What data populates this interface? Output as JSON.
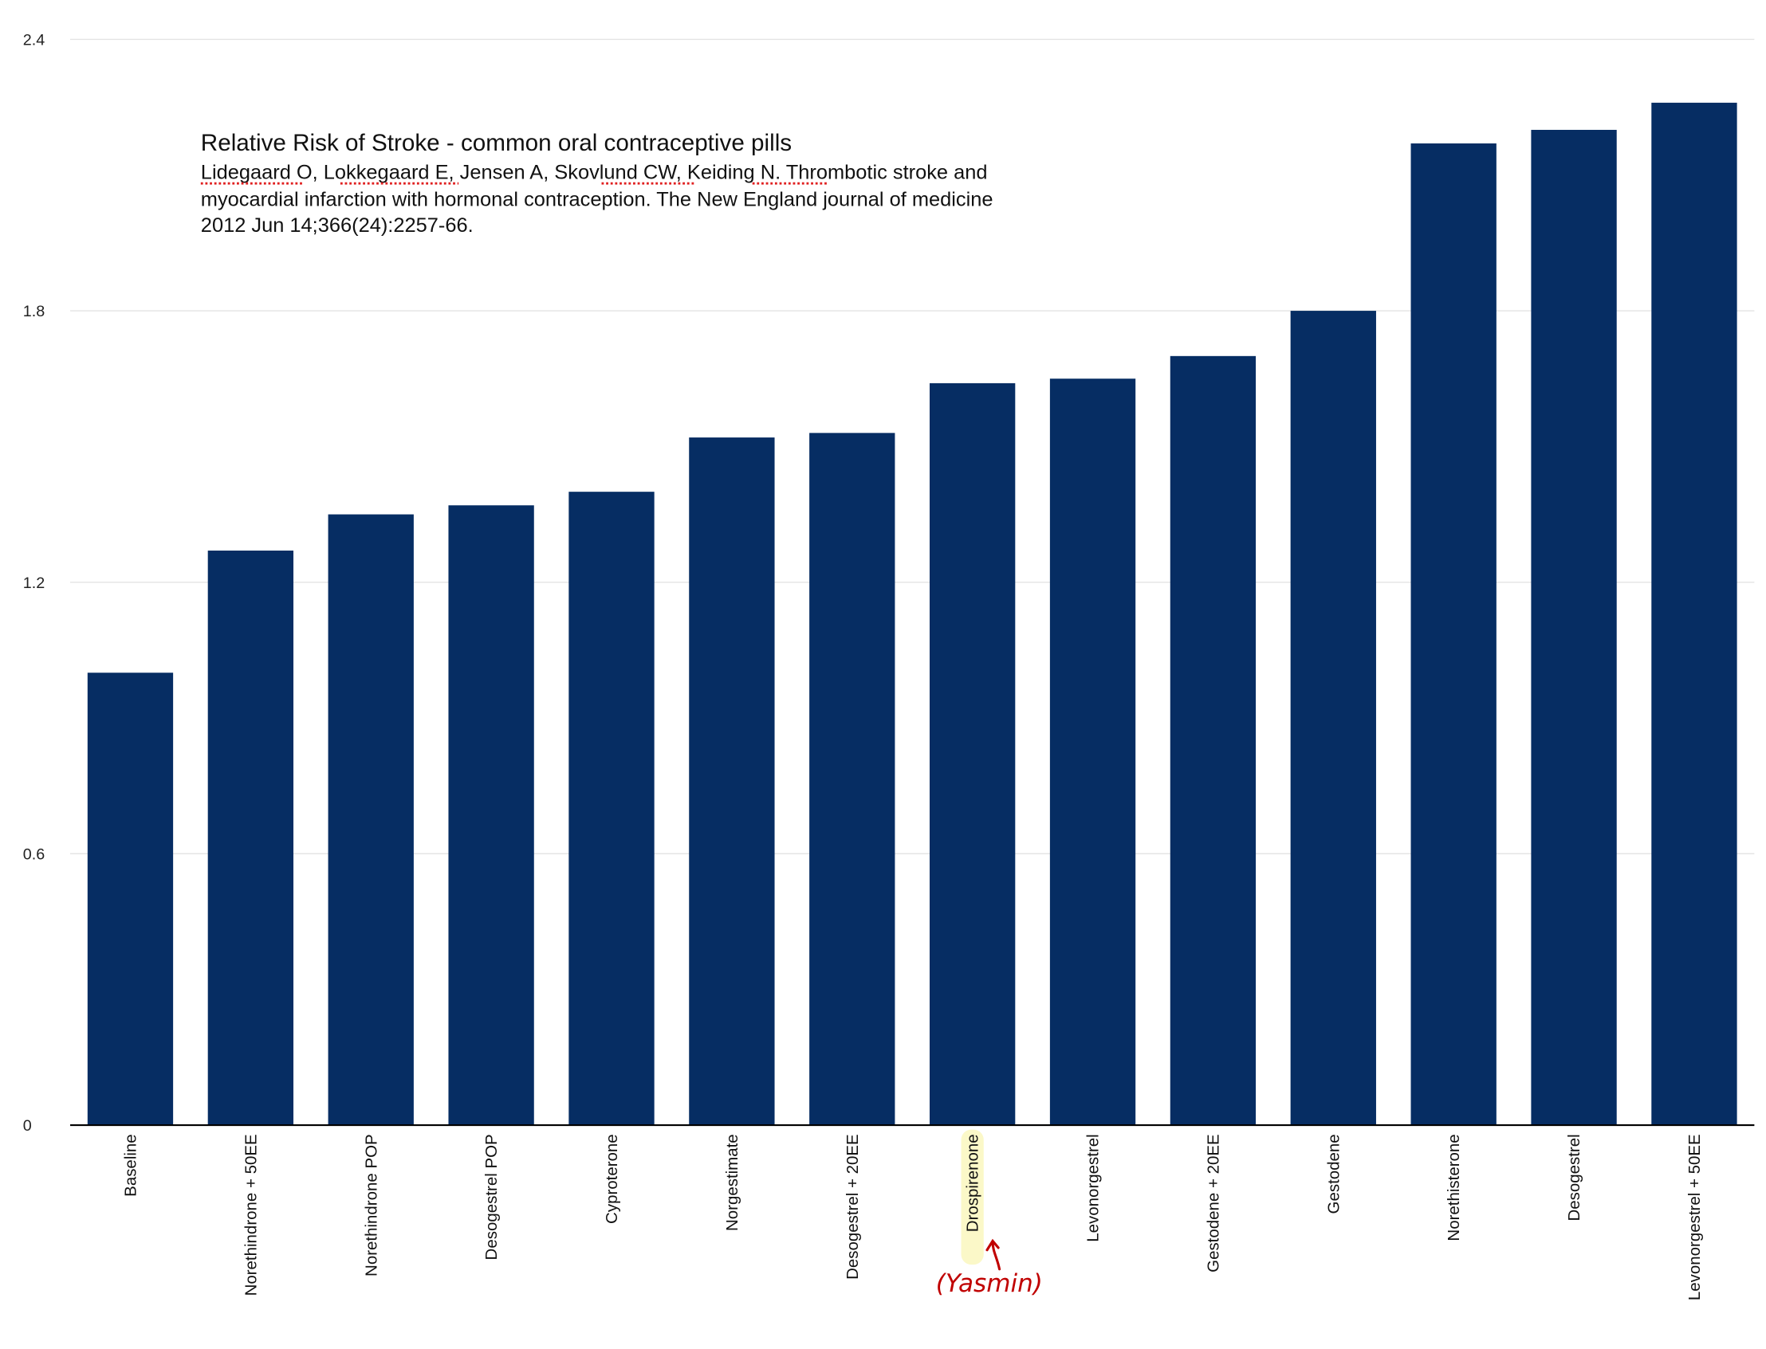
{
  "chart_data": {
    "type": "bar",
    "title": "Relative Risk of Stroke - common oral contraceptive pills",
    "citation_lines": [
      "Lidegaard O, Lokkegaard E, Jensen A, Skovlund CW, Keiding N. Thrombotic stroke and",
      "myocardial infarction with hormonal contraception. The New England journal of medicine",
      "2012 Jun 14;366(24):2257-66."
    ],
    "underlined_words": [
      "Lidegaard",
      "Lokkegaard",
      "Skovlund",
      "Keiding"
    ],
    "xlabel": "",
    "ylabel": "",
    "ylim": [
      0,
      2.4
    ],
    "yticks": [
      "0",
      "0.6",
      "1.2",
      "1.8",
      "2.4"
    ],
    "grid": true,
    "bar_color": "#062d63",
    "categories": [
      "Baseline",
      "Norethindrone + 50EE",
      "Norethindrone POP",
      "Desogestrel POP",
      "Cyproterone",
      "Norgestimate",
      "Desogestrel + 20EE",
      "Drospirenone",
      "Levonorgestrel",
      "Gestodene + 20EE",
      "Gestodene",
      "Norethisterone",
      "Desogestrel",
      "Levonorgestrel + 50EE"
    ],
    "values": [
      1.0,
      1.27,
      1.35,
      1.37,
      1.4,
      1.52,
      1.53,
      1.64,
      1.65,
      1.7,
      1.8,
      2.17,
      2.2,
      2.26
    ],
    "highlighted_category": "Drospirenone",
    "highlight_color": "#fbf8c8",
    "annotation": {
      "text": "(Yasmin)",
      "target": "Drospirenone",
      "color": "#c00000"
    }
  }
}
